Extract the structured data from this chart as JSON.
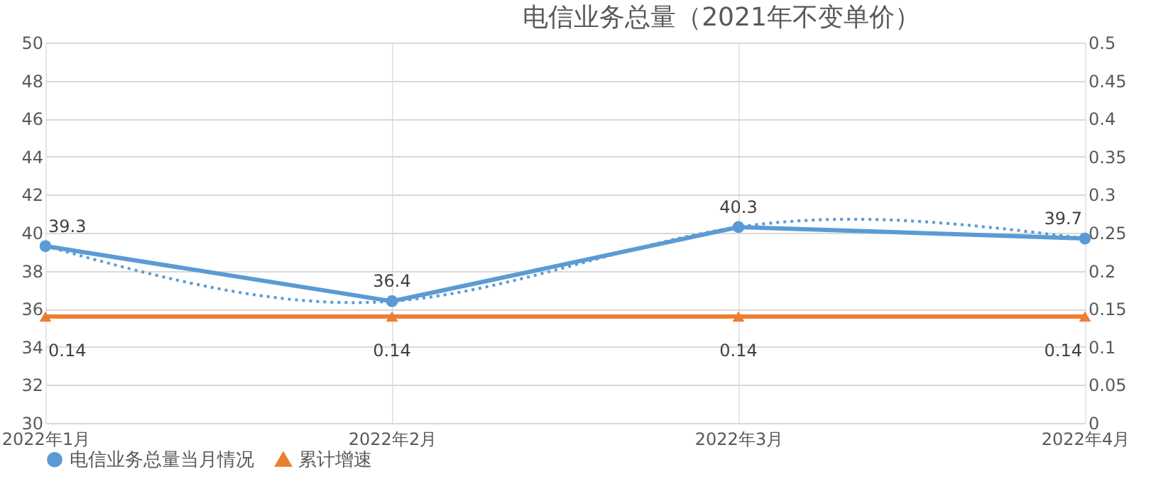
{
  "chart_data": {
    "type": "line",
    "title": "电信业务总量（2021年不变单价）",
    "categories": [
      "2022年1月",
      "2022年2月",
      "2022年3月",
      "2022年4月"
    ],
    "series": [
      {
        "name": "电信业务总量当月情况",
        "color": "#5b9bd5",
        "values": [
          39.3,
          36.4,
          40.3,
          39.7
        ],
        "marker": "circle"
      },
      {
        "name": "累计增速",
        "color": "#ed7d31",
        "values": [
          0.14,
          0.14,
          0.14,
          0.14
        ],
        "axis": "y2",
        "marker": "triangle"
      },
      {
        "type": "line",
        "color": "#5b9bd5",
        "values": [
          39.3,
          36.4,
          40.3,
          39.7
        ],
        "value_labels": [
          null,
          null,
          null,
          null
        ],
        "line_style": "dotted",
        "marker": "none"
      }
    ],
    "ylim": [
      30,
      50
    ],
    "yticks": [
      30,
      32,
      34,
      36,
      38,
      40,
      42,
      44,
      46,
      48,
      50
    ],
    "y2lim": [
      0,
      0.5
    ],
    "y2ticks": [
      0,
      0.05,
      0.1,
      0.15,
      0.2,
      0.25,
      0.3,
      0.35,
      0.4,
      0.45,
      0.5
    ],
    "grid": true,
    "legend": "bottom",
    "data_labels": true
  }
}
